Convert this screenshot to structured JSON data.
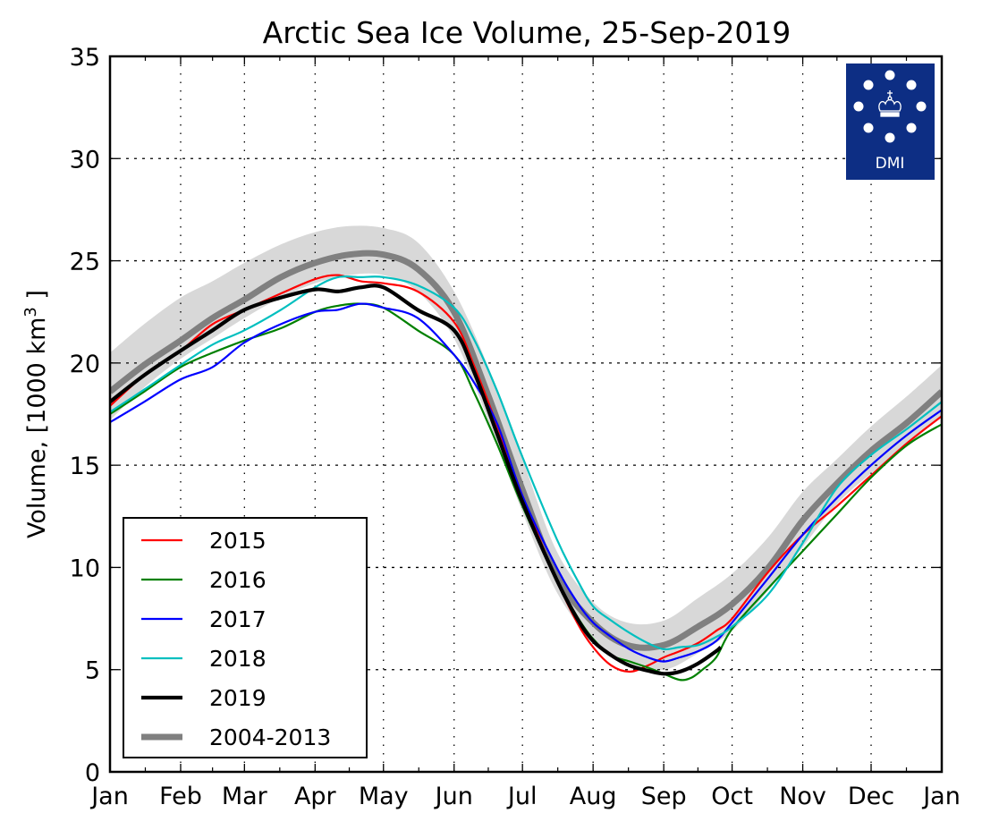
{
  "chart_data": {
    "type": "line",
    "title": "Arctic Sea Ice Volume, 25-Sep-2019",
    "xlabel": "",
    "ylabel": "Volume, [1000 km",
    "ylabel_superscript": "3",
    "ylabel_suffix": " ]",
    "xlim": [
      0,
      365
    ],
    "ylim": [
      0,
      35
    ],
    "grid": true,
    "legend_position": "bottom-left",
    "x_unit": "day of year",
    "x_ticks": [
      {
        "label": "Jan",
        "day": 0
      },
      {
        "label": "Feb",
        "day": 31
      },
      {
        "label": "Mar",
        "day": 59
      },
      {
        "label": "Apr",
        "day": 90
      },
      {
        "label": "May",
        "day": 120
      },
      {
        "label": "Jun",
        "day": 151
      },
      {
        "label": "Jul",
        "day": 181
      },
      {
        "label": "Aug",
        "day": 212
      },
      {
        "label": "Sep",
        "day": 243
      },
      {
        "label": "Oct",
        "day": 273
      },
      {
        "label": "Nov",
        "day": 304
      },
      {
        "label": "Dec",
        "day": 334
      },
      {
        "label": "Jan",
        "day": 365
      }
    ],
    "y_ticks": [
      0,
      5,
      10,
      15,
      20,
      25,
      30,
      35
    ],
    "band": {
      "name": "2004-2013 range",
      "color": "#d8d8d8",
      "x": [
        0,
        15,
        31,
        45,
        59,
        75,
        90,
        105,
        120,
        135,
        151,
        166,
        181,
        196,
        212,
        227,
        243,
        258,
        273,
        289,
        304,
        319,
        334,
        350,
        365
      ],
      "upper": [
        20.5,
        21.9,
        23.2,
        24.0,
        24.9,
        25.8,
        26.4,
        26.7,
        26.6,
        25.9,
        23.5,
        19.8,
        15.3,
        10.8,
        8.3,
        7.3,
        7.4,
        8.5,
        9.7,
        11.5,
        13.7,
        15.3,
        16.9,
        18.4,
        19.9
      ],
      "lower": [
        17.2,
        18.8,
        20.2,
        21.2,
        22.2,
        23.2,
        23.9,
        24.3,
        24.3,
        23.5,
        21.2,
        17.2,
        12.7,
        8.8,
        6.4,
        5.4,
        5.0,
        5.8,
        6.9,
        8.9,
        11.0,
        13.1,
        14.6,
        16.0,
        17.4
      ]
    },
    "series": [
      {
        "name": "2015",
        "color": "#ff0000",
        "width": "thin",
        "x": [
          0,
          15,
          31,
          45,
          59,
          75,
          90,
          100,
          110,
          120,
          135,
          151,
          160,
          170,
          181,
          196,
          205,
          212,
          220,
          228,
          236,
          243,
          250,
          258,
          266,
          273,
          289,
          304,
          319,
          334,
          350,
          365
        ],
        "y": [
          17.9,
          19.4,
          20.6,
          21.9,
          22.6,
          23.4,
          24.1,
          24.3,
          24.0,
          23.9,
          23.5,
          22.0,
          19.8,
          16.9,
          13.5,
          9.4,
          7.3,
          6.1,
          5.2,
          4.9,
          5.2,
          5.6,
          5.9,
          6.3,
          6.9,
          7.5,
          9.8,
          11.6,
          13.0,
          14.5,
          16.1,
          17.4
        ]
      },
      {
        "name": "2016",
        "color": "#008000",
        "width": "thin",
        "x": [
          0,
          15,
          31,
          45,
          59,
          75,
          90,
          100,
          110,
          120,
          135,
          151,
          160,
          170,
          181,
          196,
          205,
          212,
          220,
          228,
          236,
          243,
          250,
          255,
          260,
          266,
          273,
          289,
          304,
          319,
          334,
          350,
          365
        ],
        "y": [
          17.5,
          18.6,
          19.8,
          20.5,
          21.1,
          21.7,
          22.5,
          22.8,
          22.9,
          22.7,
          21.6,
          20.4,
          18.5,
          16.0,
          13.0,
          9.4,
          7.6,
          6.5,
          5.7,
          5.4,
          5.1,
          4.8,
          4.5,
          4.6,
          5.0,
          5.6,
          7.0,
          9.0,
          10.8,
          12.6,
          14.4,
          16.0,
          17.0
        ]
      },
      {
        "name": "2017",
        "color": "#0000ff",
        "width": "thin",
        "x": [
          0,
          15,
          31,
          45,
          59,
          75,
          90,
          100,
          110,
          120,
          135,
          151,
          160,
          170,
          181,
          196,
          205,
          212,
          220,
          228,
          236,
          243,
          250,
          258,
          266,
          273,
          289,
          304,
          319,
          334,
          350,
          365
        ],
        "y": [
          17.1,
          18.1,
          19.2,
          19.8,
          21.0,
          21.9,
          22.5,
          22.6,
          22.9,
          22.7,
          22.2,
          20.4,
          19.0,
          17.0,
          13.5,
          10.0,
          8.3,
          7.3,
          6.6,
          6.0,
          5.6,
          5.4,
          5.6,
          5.9,
          6.4,
          7.3,
          9.5,
          11.6,
          13.4,
          15.0,
          16.5,
          17.7
        ]
      },
      {
        "name": "2018",
        "color": "#00bfbf",
        "width": "thin",
        "x": [
          0,
          15,
          31,
          45,
          59,
          75,
          90,
          100,
          110,
          120,
          135,
          151,
          160,
          170,
          181,
          196,
          205,
          212,
          220,
          228,
          236,
          243,
          250,
          258,
          266,
          273,
          289,
          304,
          319,
          334,
          350,
          365
        ],
        "y": [
          17.6,
          18.7,
          19.9,
          20.9,
          21.6,
          22.6,
          23.7,
          24.2,
          24.2,
          24.2,
          23.8,
          22.7,
          21.1,
          18.6,
          15.4,
          11.4,
          9.4,
          8.1,
          7.4,
          6.8,
          6.3,
          6.0,
          6.1,
          6.2,
          6.6,
          7.1,
          8.7,
          11.2,
          13.9,
          15.5,
          16.8,
          18.1
        ]
      },
      {
        "name": "2019",
        "color": "#000000",
        "width": "thick",
        "x": [
          0,
          15,
          31,
          45,
          59,
          75,
          90,
          100,
          110,
          120,
          135,
          151,
          160,
          170,
          181,
          196,
          205,
          212,
          220,
          228,
          236,
          243,
          250,
          258,
          266,
          268
        ],
        "y": [
          18.1,
          19.4,
          20.6,
          21.6,
          22.6,
          23.2,
          23.6,
          23.5,
          23.7,
          23.7,
          22.6,
          21.6,
          19.5,
          16.5,
          13.2,
          9.4,
          7.5,
          6.4,
          5.7,
          5.2,
          4.95,
          4.8,
          4.9,
          5.3,
          5.9,
          6.1
        ]
      },
      {
        "name": "2004-2013",
        "color": "#808080",
        "width": "extra-thick",
        "x": [
          0,
          15,
          31,
          45,
          59,
          75,
          90,
          105,
          120,
          135,
          151,
          166,
          181,
          196,
          212,
          227,
          243,
          258,
          273,
          289,
          304,
          319,
          334,
          350,
          365
        ],
        "y": [
          18.6,
          19.9,
          21.1,
          22.2,
          23.1,
          24.2,
          24.9,
          25.3,
          25.3,
          24.6,
          22.5,
          18.4,
          13.8,
          9.6,
          7.3,
          6.2,
          6.2,
          7.1,
          8.2,
          10.0,
          12.3,
          14.1,
          15.7,
          17.1,
          18.6
        ]
      }
    ]
  },
  "logo": {
    "text": "DMI",
    "background": "#0d2e84",
    "icon": "crown-icon"
  }
}
